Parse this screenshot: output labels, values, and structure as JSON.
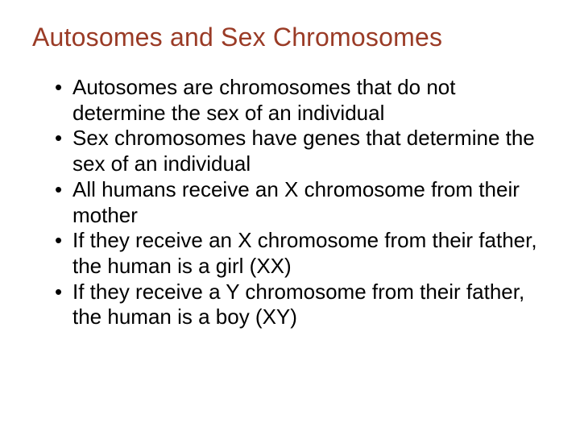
{
  "slide": {
    "title": "Autosomes and Sex Chromosomes",
    "title_color": "#9a3b26",
    "body_color": "#000000",
    "background_color": "#ffffff",
    "title_fontsize": 32,
    "body_fontsize": 26,
    "bullets": [
      "Autosomes are chromosomes that do not determine the sex of an individual",
      "Sex chromosomes have genes that determine the sex of an individual",
      "All humans receive an X chromosome from their mother",
      "If they receive an X chromosome from their father, the human is a girl (XX)",
      "If they receive a Y chromosome from their father, the human is a boy (XY)"
    ]
  }
}
